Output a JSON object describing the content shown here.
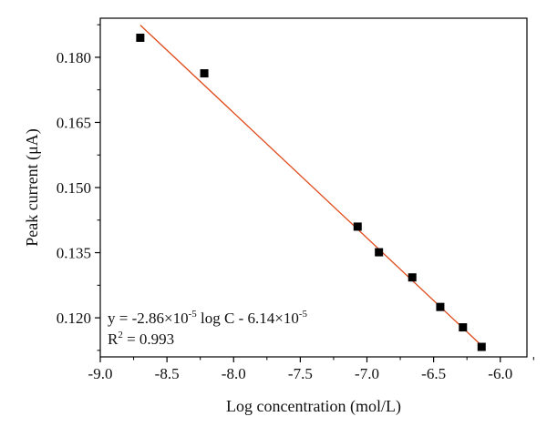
{
  "chart_data": {
    "type": "scatter",
    "title": "",
    "xlabel": "Log concentration (mol/L)",
    "ylabel": "Peak current (μA)",
    "xlim": [
      -9.0,
      -5.8
    ],
    "ylim": [
      0.111,
      0.189
    ],
    "xticks": [
      -9.0,
      -8.5,
      -8.0,
      -7.5,
      -7.0,
      -6.5,
      -6.0
    ],
    "xtick_labels": [
      "-9.0",
      "-8.5",
      "-8.0",
      "-7.5",
      "-7.0",
      "-6.5",
      "-6.0"
    ],
    "yticks": [
      0.12,
      0.135,
      0.15,
      0.165,
      0.18
    ],
    "ytick_labels": [
      "0.120",
      "0.135",
      "0.150",
      "0.165",
      "0.180"
    ],
    "grid": false,
    "series": [
      {
        "marker": "square",
        "color": "#000000",
        "x": [
          -8.7,
          -8.22,
          -7.07,
          -6.91,
          -6.66,
          -6.45,
          -6.28,
          -6.14
        ],
        "y": [
          0.1845,
          0.1763,
          0.141,
          0.1351,
          0.1293,
          0.1225,
          0.1178,
          0.1133
        ]
      }
    ],
    "fit_line": {
      "color": "#e04a1a",
      "x": [
        -8.7,
        -6.14
      ],
      "y": [
        0.1874,
        0.1136
      ]
    },
    "annotations": {
      "equation_prefix": "y = -2.86×10",
      "equation_exp1": "-5",
      "equation_mid": " log C - 6.14×10",
      "equation_exp2": "-5",
      "r2_prefix": "R",
      "r2_exp": "2",
      "r2_suffix": " = 0.993"
    }
  }
}
